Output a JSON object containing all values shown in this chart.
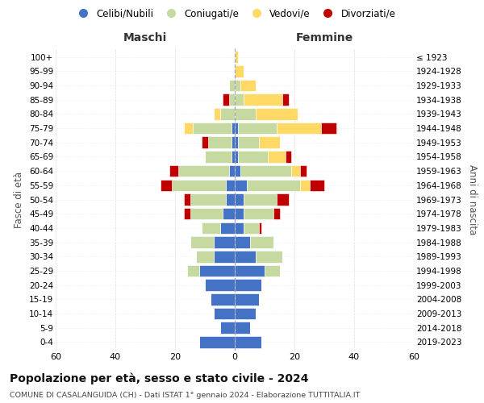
{
  "age_groups": [
    "0-4",
    "5-9",
    "10-14",
    "15-19",
    "20-24",
    "25-29",
    "30-34",
    "35-39",
    "40-44",
    "45-49",
    "50-54",
    "55-59",
    "60-64",
    "65-69",
    "70-74",
    "75-79",
    "80-84",
    "85-89",
    "90-94",
    "95-99",
    "100+"
  ],
  "birth_years": [
    "2019-2023",
    "2014-2018",
    "2009-2013",
    "2004-2008",
    "1999-2003",
    "1994-1998",
    "1989-1993",
    "1984-1988",
    "1979-1983",
    "1974-1978",
    "1969-1973",
    "1964-1968",
    "1959-1963",
    "1954-1958",
    "1949-1953",
    "1944-1948",
    "1939-1943",
    "1934-1938",
    "1929-1933",
    "1924-1928",
    "≤ 1923"
  ],
  "colors": {
    "celibi": "#4472C4",
    "coniugati": "#c5d9a0",
    "vedovi": "#FFD966",
    "divorziati": "#C00000"
  },
  "maschi": {
    "celibi": [
      12,
      5,
      7,
      8,
      10,
      12,
      7,
      7,
      5,
      4,
      3,
      3,
      2,
      1,
      1,
      1,
      0,
      0,
      0,
      0,
      0
    ],
    "coniugati": [
      0,
      0,
      0,
      0,
      0,
      4,
      6,
      8,
      6,
      11,
      12,
      18,
      17,
      9,
      8,
      13,
      5,
      2,
      2,
      0,
      0
    ],
    "vedovi": [
      0,
      0,
      0,
      0,
      0,
      0,
      0,
      0,
      0,
      0,
      0,
      0,
      0,
      0,
      0,
      3,
      2,
      0,
      0,
      0,
      0
    ],
    "divorziati": [
      0,
      0,
      0,
      0,
      0,
      0,
      0,
      0,
      0,
      2,
      2,
      4,
      3,
      0,
      2,
      0,
      0,
      2,
      0,
      0,
      0
    ]
  },
  "femmine": {
    "celibi": [
      9,
      5,
      7,
      8,
      9,
      10,
      7,
      5,
      3,
      3,
      3,
      4,
      2,
      1,
      1,
      1,
      0,
      0,
      0,
      0,
      0
    ],
    "coniugati": [
      0,
      0,
      0,
      0,
      0,
      5,
      9,
      8,
      5,
      10,
      11,
      18,
      17,
      10,
      7,
      13,
      7,
      3,
      2,
      0,
      0
    ],
    "vedovi": [
      0,
      0,
      0,
      0,
      0,
      0,
      0,
      0,
      0,
      0,
      0,
      3,
      3,
      6,
      7,
      15,
      14,
      13,
      5,
      3,
      1
    ],
    "divorziati": [
      0,
      0,
      0,
      0,
      0,
      0,
      0,
      0,
      1,
      2,
      4,
      5,
      2,
      2,
      0,
      5,
      0,
      2,
      0,
      0,
      0
    ]
  },
  "xlim": 60,
  "title": "Popolazione per età, sesso e stato civile - 2024",
  "subtitle": "COMUNE DI CASALANGUIDA (CH) - Dati ISTAT 1° gennaio 2024 - Elaborazione TUTTITALIA.IT",
  "ylabel_left": "Fasce di età",
  "ylabel_right": "Anni di nascita",
  "xlabel_maschi": "Maschi",
  "xlabel_femmine": "Femmine",
  "legend_labels": [
    "Celibi/Nubili",
    "Coniugati/e",
    "Vedovi/e",
    "Divorziati/e"
  ],
  "background_color": "#ffffff",
  "grid_color": "#cccccc",
  "bar_height": 0.82
}
